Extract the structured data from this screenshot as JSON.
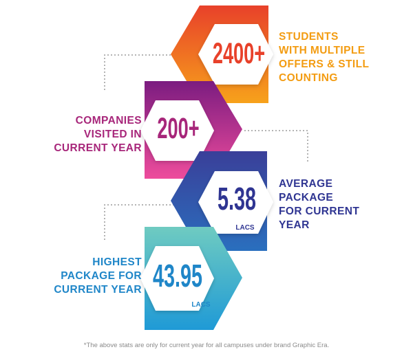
{
  "stats": [
    {
      "value": "2400+",
      "unit": "",
      "label_lines": [
        "STUDENTS",
        "WITH MULTIPLE",
        "OFFERS & STILL",
        "COUNTING"
      ],
      "value_color": "#e8412a",
      "label_color": "#f39c12"
    },
    {
      "value": "200+",
      "unit": "",
      "label_lines": [
        "COMPANIES",
        "VISITED IN",
        "CURRENT YEAR"
      ],
      "value_color": "#a7267a",
      "label_color": "#a7267a"
    },
    {
      "value": "5.38",
      "unit": "LACS",
      "label_lines": [
        "AVERAGE",
        "PACKAGE",
        "FOR CURRENT",
        "YEAR"
      ],
      "value_color": "#2f3592",
      "label_color": "#2f3592"
    },
    {
      "value": "43.95",
      "unit": "LACS",
      "label_lines": [
        "HIGHEST",
        "PACKAGE FOR",
        "CURRENT YEAR"
      ],
      "value_color": "#1f86c8",
      "label_color": "#1f86c8"
    }
  ],
  "footnote": "*The above stats are only for current year for all campuses under brand Graphic Era.",
  "colors": {
    "orange_top": "#e8412a",
    "orange_bottom": "#f7a21b",
    "magenta_top": "#7b1c80",
    "magenta_bottom": "#ee4c9c",
    "navy_top": "#3a3f99",
    "navy_bottom": "#2a6fbe",
    "teal_top": "#6fcbc1",
    "teal_bottom": "#1f9ad6",
    "connector": "#9a9a9a"
  }
}
